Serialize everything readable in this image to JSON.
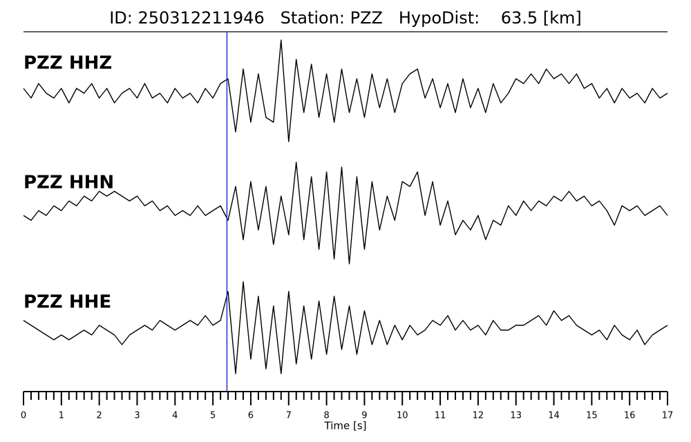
{
  "chart_data": {
    "type": "seismogram",
    "title": "ID: 250312211946   Station: PZZ   HypoDist:    63.5 [km]",
    "xlabel": "Time [s]",
    "xlim": [
      0,
      17
    ],
    "xticks": [
      0,
      1,
      2,
      3,
      4,
      5,
      6,
      7,
      8,
      9,
      10,
      11,
      12,
      13,
      14,
      15,
      16,
      17
    ],
    "xminorticks": [
      0.2,
      0.4,
      0.6,
      0.8,
      1.2,
      1.4,
      1.6,
      1.8,
      2.2,
      2.4,
      2.6,
      2.8,
      3.2,
      3.4,
      3.6,
      3.8,
      4.2,
      4.4,
      4.6,
      4.8,
      5.2,
      5.4,
      5.6,
      5.8,
      6.2,
      6.4,
      6.6,
      6.8,
      7.2,
      7.4,
      7.6,
      7.8,
      8.2,
      8.4,
      8.6,
      8.8,
      9.2,
      9.4,
      9.6,
      9.8,
      10.2,
      10.4,
      10.6,
      10.8,
      11.2,
      11.4,
      11.6,
      11.8,
      12.2,
      12.4,
      12.6,
      12.8,
      13.2,
      13.4,
      13.6,
      13.8,
      14.2,
      14.4,
      14.6,
      14.8,
      15.2,
      15.4,
      15.6,
      15.8,
      16.2,
      16.4,
      16.6,
      16.8
    ],
    "ylim": [
      -12,
      12
    ],
    "pick": 5.37,
    "pick_color": "#1f2fd6",
    "label_color": "#4a9a0a",
    "x": [
      0,
      0.2,
      0.4,
      0.6,
      0.8,
      1,
      1.2,
      1.4,
      1.6,
      1.8,
      2,
      2.2,
      2.4,
      2.6,
      2.8,
      3,
      3.2,
      3.4,
      3.6,
      3.8,
      4,
      4.2,
      4.4,
      4.6,
      4.8,
      5,
      5.2,
      5.4,
      5.6,
      5.8,
      6,
      6.2,
      6.4,
      6.6,
      6.8,
      7,
      7.2,
      7.4,
      7.6,
      7.8,
      8,
      8.2,
      8.4,
      8.6,
      8.8,
      9,
      9.2,
      9.4,
      9.6,
      9.8,
      10,
      10.2,
      10.4,
      10.6,
      10.8,
      11,
      11.2,
      11.4,
      11.6,
      11.8,
      12,
      12.2,
      12.4,
      12.6,
      12.8,
      13,
      13.2,
      13.4,
      13.6,
      13.8,
      14,
      14.2,
      14.4,
      14.6,
      14.8,
      15,
      15.2,
      15.4,
      15.6,
      15.8,
      16,
      16.2,
      16.4,
      16.6,
      16.8,
      17
    ],
    "series": [
      {
        "name": "PZZ HHZ",
        "color": "#000000",
        "values": [
          1,
          -1,
          2,
          0,
          -1,
          1,
          -2,
          1,
          0,
          2,
          -1,
          1,
          -2,
          0,
          1,
          -1,
          2,
          -1,
          0,
          -2,
          1,
          -1,
          0,
          -2,
          1,
          -1,
          2,
          3,
          -8,
          5,
          -6,
          4,
          -5,
          -6,
          11,
          -10,
          7,
          -4,
          6,
          -5,
          4,
          -6,
          5,
          -4,
          3,
          -5,
          4,
          -3,
          3,
          -4,
          2,
          4,
          5,
          -1,
          3,
          -3,
          2,
          -4,
          3,
          -3,
          1,
          -4,
          2,
          -2,
          0,
          3,
          2,
          4,
          2,
          5,
          3,
          4,
          2,
          4,
          1,
          2,
          -1,
          1,
          -2,
          1,
          -1,
          0,
          -2,
          1,
          -1,
          0
        ]
      },
      {
        "name": "PZZ HHN",
        "color": "#000000",
        "values": [
          -1,
          -2,
          0,
          -1,
          1,
          0,
          2,
          1,
          3,
          2,
          4,
          3,
          4,
          3,
          2,
          3,
          1,
          2,
          0,
          1,
          -1,
          0,
          -1,
          1,
          -1,
          0,
          1,
          -2,
          5,
          -6,
          6,
          -4,
          5,
          -7,
          3,
          -5,
          10,
          -6,
          7,
          -8,
          8,
          -10,
          9,
          -11,
          7,
          -8,
          6,
          -4,
          3,
          -2,
          6,
          5,
          8,
          -1,
          6,
          -3,
          2,
          -5,
          -2,
          -4,
          -1,
          -6,
          -2,
          -3,
          1,
          -1,
          2,
          0,
          2,
          1,
          3,
          2,
          4,
          2,
          3,
          1,
          2,
          0,
          -3,
          1,
          0,
          1,
          -1,
          0,
          1,
          -1
        ]
      },
      {
        "name": "PZZ HHE",
        "color": "#000000",
        "values": [
          2,
          1,
          0,
          -1,
          -2,
          -1,
          -2,
          -1,
          0,
          -1,
          1,
          0,
          -1,
          -3,
          -1,
          0,
          1,
          0,
          2,
          1,
          0,
          1,
          2,
          1,
          3,
          1,
          2,
          8,
          -9,
          10,
          -6,
          7,
          -8,
          5,
          -9,
          8,
          -7,
          5,
          -6,
          6,
          -5,
          7,
          -4,
          5,
          -5,
          4,
          -3,
          2,
          -3,
          1,
          -2,
          1,
          -1,
          0,
          2,
          1,
          3,
          0,
          2,
          0,
          1,
          -1,
          2,
          0,
          0,
          1,
          1,
          2,
          3,
          1,
          4,
          2,
          3,
          1,
          0,
          -1,
          0,
          -2,
          1,
          -1,
          -2,
          0,
          -3,
          -1,
          0,
          1
        ]
      }
    ]
  }
}
